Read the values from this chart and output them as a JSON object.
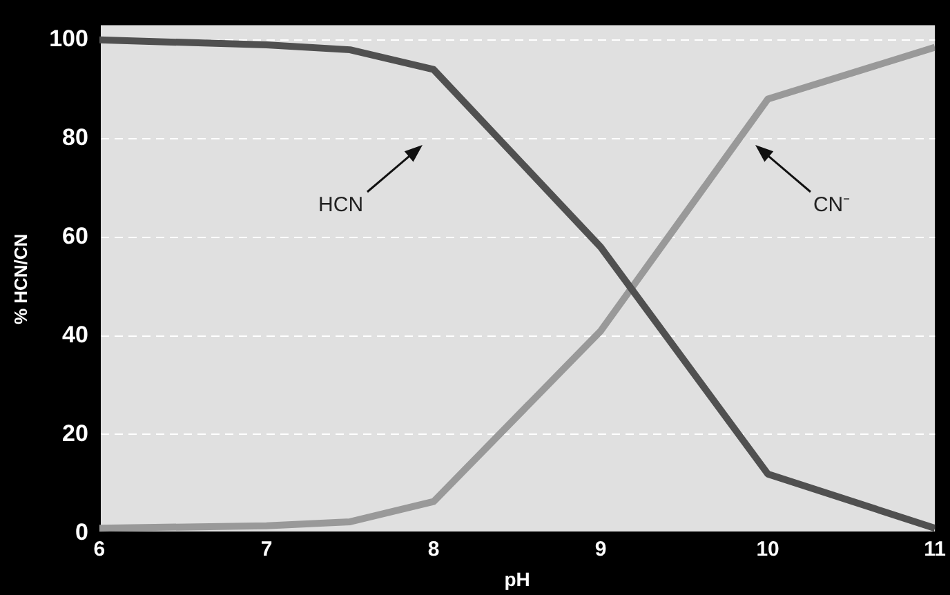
{
  "chart_data": {
    "type": "line",
    "xlabel": "pH",
    "ylabel": "% HCN/CN",
    "x": [
      6,
      7,
      7.5,
      8,
      9,
      10,
      11
    ],
    "series": [
      {
        "color": "#505050",
        "values": [
          100,
          99,
          98,
          94,
          58,
          12,
          1
        ]
      },
      {
        "color": "#999999",
        "values": [
          1,
          1.5,
          2.3,
          6.4,
          41,
          88,
          98.5
        ]
      }
    ],
    "annotations": [
      "HCN",
      "CN⁻"
    ],
    "xlim": [
      6,
      11
    ],
    "xticks": [
      6,
      7,
      8,
      9,
      10,
      11
    ],
    "ylim": [
      0,
      103
    ],
    "yticks": [
      0,
      20,
      40,
      60,
      80,
      100
    ],
    "grid": "y",
    "legend": false,
    "marker": "none",
    "line_style": "solid"
  }
}
